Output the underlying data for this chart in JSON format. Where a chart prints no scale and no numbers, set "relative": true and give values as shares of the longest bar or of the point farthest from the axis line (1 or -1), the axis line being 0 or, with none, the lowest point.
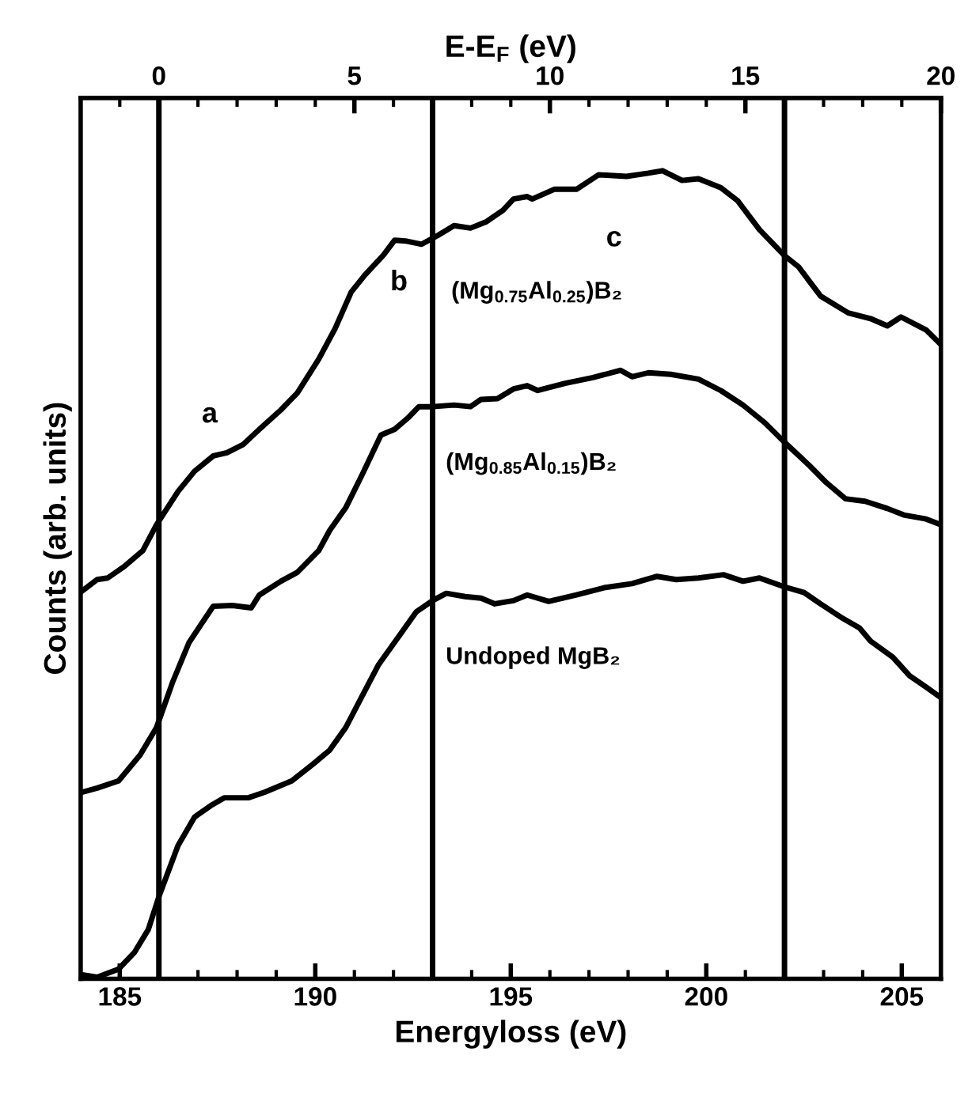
{
  "chart_data": {
    "type": "line",
    "xlabel": "Energyloss (eV)",
    "ylabel": "Counts (arb. units)",
    "x2label": "E-E$_{F}$ (eV)",
    "relative": true,
    "xlim": [
      184,
      206
    ],
    "xticks": [
      185,
      190,
      195,
      200,
      205
    ],
    "x2lim": [
      -2,
      20
    ],
    "x2ticks": [
      0,
      5,
      10,
      15,
      20
    ],
    "grid": false,
    "legend": false,
    "marker": "none",
    "line_style": "solid",
    "series": [
      {
        "name": "(Mg$_{0.75}$Al$_{0.25}$)B₂",
        "color": "#000000",
        "x": [
          184.04,
          184.42,
          184.69,
          185.11,
          185.59,
          185.94,
          186.49,
          186.91,
          187.39,
          187.74,
          188.15,
          188.57,
          189.12,
          189.54,
          190.09,
          190.51,
          190.92,
          191.27,
          191.75,
          192.03,
          192.31,
          192.72,
          193.14,
          193.55,
          193.97,
          194.38,
          194.8,
          195.07,
          195.42,
          195.55,
          196.11,
          196.68,
          197.25,
          197.96,
          198.52,
          198.88,
          199.38,
          199.8,
          200.37,
          200.8,
          201.36,
          202.0,
          202.36,
          202.92,
          203.63,
          204.2,
          204.63,
          204.98,
          205.62,
          206.0
        ],
        "values": [
          0.48,
          0.494,
          0.496,
          0.51,
          0.53,
          0.562,
          0.603,
          0.628,
          0.647,
          0.651,
          0.661,
          0.68,
          0.704,
          0.725,
          0.767,
          0.805,
          0.85,
          0.871,
          0.896,
          0.914,
          0.913,
          0.909,
          0.92,
          0.932,
          0.929,
          0.937,
          0.951,
          0.965,
          0.968,
          0.965,
          0.977,
          0.977,
          0.995,
          0.993,
          0.997,
          1.0,
          0.988,
          0.99,
          0.979,
          0.963,
          0.927,
          0.895,
          0.881,
          0.845,
          0.824,
          0.817,
          0.808,
          0.819,
          0.803,
          0.785
        ]
      },
      {
        "name": "(Mg$_{0.85}$Al$_{0.15}$)B₂",
        "color": "#000000",
        "x": [
          184.04,
          184.42,
          184.97,
          185.52,
          185.94,
          186.35,
          186.77,
          187.39,
          187.88,
          188.36,
          188.57,
          189.12,
          189.54,
          190.09,
          190.37,
          190.78,
          191.2,
          191.68,
          192.03,
          192.37,
          192.65,
          193.0,
          193.55,
          193.97,
          194.24,
          194.66,
          195.07,
          195.42,
          195.69,
          196.39,
          197.1,
          197.81,
          198.1,
          198.52,
          199.09,
          199.8,
          200.37,
          200.94,
          201.5,
          202.0,
          202.64,
          203.07,
          203.56,
          204.06,
          204.63,
          205.05,
          205.62,
          206.0
        ],
        "values": [
          0.231,
          0.236,
          0.245,
          0.277,
          0.311,
          0.367,
          0.416,
          0.461,
          0.462,
          0.459,
          0.475,
          0.492,
          0.503,
          0.53,
          0.555,
          0.583,
          0.624,
          0.673,
          0.68,
          0.694,
          0.708,
          0.708,
          0.71,
          0.708,
          0.717,
          0.718,
          0.73,
          0.734,
          0.728,
          0.737,
          0.744,
          0.753,
          0.745,
          0.75,
          0.748,
          0.742,
          0.728,
          0.71,
          0.688,
          0.664,
          0.635,
          0.614,
          0.594,
          0.591,
          0.582,
          0.574,
          0.569,
          0.562
        ]
      },
      {
        "name": "Undoped MgB₂",
        "color": "#000000",
        "x": [
          184.04,
          184.42,
          184.97,
          185.38,
          185.73,
          186.01,
          186.49,
          186.91,
          187.32,
          187.67,
          188.29,
          188.71,
          189.4,
          189.95,
          190.37,
          190.78,
          191.2,
          191.61,
          192.17,
          192.58,
          193.0,
          193.35,
          193.83,
          194.24,
          194.59,
          195.07,
          195.42,
          195.97,
          196.68,
          197.39,
          198.1,
          198.74,
          199.23,
          199.8,
          200.44,
          200.94,
          201.36,
          202.0,
          202.5,
          202.92,
          203.49,
          203.92,
          204.2,
          204.77,
          205.2,
          205.62,
          206.0
        ],
        "values": [
          0.005,
          0.002,
          0.012,
          0.033,
          0.061,
          0.103,
          0.165,
          0.2,
          0.214,
          0.224,
          0.224,
          0.231,
          0.245,
          0.266,
          0.283,
          0.311,
          0.35,
          0.388,
          0.426,
          0.454,
          0.468,
          0.477,
          0.473,
          0.471,
          0.464,
          0.468,
          0.475,
          0.467,
          0.475,
          0.484,
          0.489,
          0.498,
          0.494,
          0.496,
          0.5,
          0.492,
          0.496,
          0.485,
          0.478,
          0.464,
          0.446,
          0.434,
          0.418,
          0.398,
          0.375,
          0.361,
          0.348
        ]
      }
    ],
    "ref_lines": [
      {
        "axis": "x",
        "value": 186,
        "color": "#000000"
      },
      {
        "axis": "x",
        "value": 193,
        "color": "#000000"
      },
      {
        "axis": "x",
        "value": 202,
        "color": "#000000"
      }
    ],
    "annotations": [
      "a",
      "b",
      "c"
    ]
  }
}
